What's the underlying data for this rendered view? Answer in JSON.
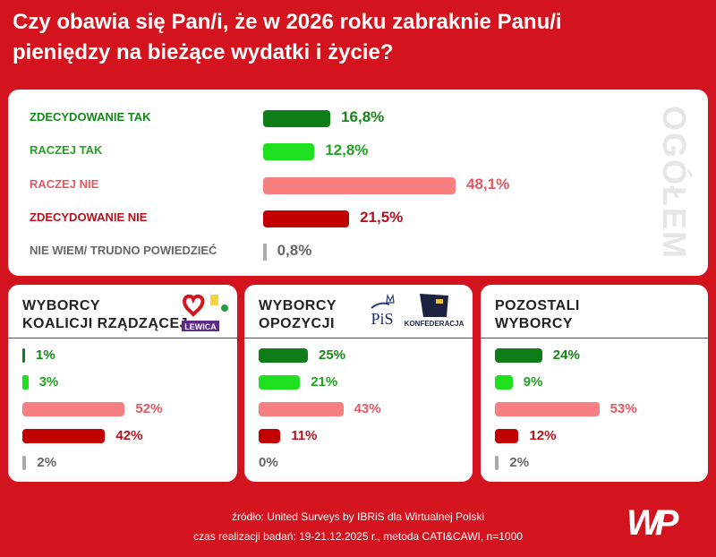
{
  "title": "Czy obawia się Pan/i, że w 2026 roku zabraknie Panu/i pieniędzy na bieżące wydatki i życie?",
  "chart_data": [
    {
      "type": "bar",
      "orientation": "horizontal",
      "panel_label": "OGÓŁEM",
      "categories": [
        "ZDECYDOWANIE TAK",
        "RACZEJ TAK",
        "RACZEJ NIE",
        "ZDECYDOWANIE NIE",
        "NIE WIEM/ TRUDNO POWIEDZIEĆ"
      ],
      "values": [
        16.8,
        12.8,
        48.1,
        21.5,
        0.8
      ],
      "value_labels": [
        "16,8%",
        "12,8%",
        "48,1%",
        "21,5%",
        "0,8%"
      ],
      "colors": [
        "#0e7d17",
        "#1fe01f",
        "#f77f7f",
        "#c20000",
        "#aaaaaa"
      ],
      "text_colors": [
        "#138a17",
        "#1fa51f",
        "#e4585f",
        "#b5121b",
        "#666666"
      ]
    },
    {
      "type": "bar",
      "orientation": "horizontal",
      "title": "WYBORCY KOALICJI RZĄDZĄCEJ",
      "title_lines": [
        "WYBORCY",
        "KOALICJI RZĄDZĄCEJ"
      ],
      "logos": [
        "heart-logo",
        "polska-2050-logo",
        "psl-clover-logo",
        "LEWICA"
      ],
      "values": [
        1,
        3,
        52,
        42,
        2
      ],
      "value_labels": [
        "1%",
        "3%",
        "52%",
        "42%",
        "2%"
      ]
    },
    {
      "type": "bar",
      "orientation": "horizontal",
      "title": "WYBORCY OPOZYCJI",
      "title_lines": [
        "WYBORCY",
        "OPOZYCJI"
      ],
      "logos": [
        "PiS",
        "KONFEDERACJA"
      ],
      "values": [
        25,
        21,
        43,
        11,
        0
      ],
      "value_labels": [
        "25%",
        "21%",
        "43%",
        "11%",
        "0%"
      ]
    },
    {
      "type": "bar",
      "orientation": "horizontal",
      "title": "POZOSTALI WYBORCY",
      "title_lines": [
        "POZOSTALI",
        "WYBORCY"
      ],
      "values": [
        24,
        9,
        53,
        12,
        2
      ],
      "value_labels": [
        "24%",
        "9%",
        "53%",
        "12%",
        "2%"
      ]
    }
  ],
  "footer": {
    "source": "źródło: United Surveys by IBRiS dla Wirtualnej Polski",
    "method": "czas realizacji badań: 19-21.12.2025 r., metoda CATI&CAWI, n=1000",
    "logo": "WP"
  }
}
